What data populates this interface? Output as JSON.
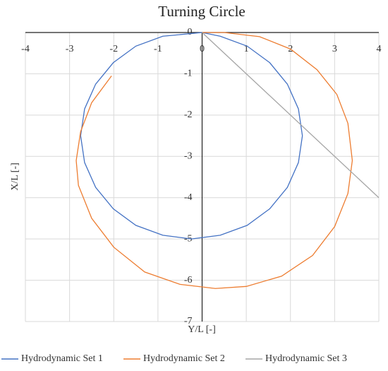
{
  "chart_data": {
    "type": "line",
    "title": "Turning Circle",
    "x_label": "Y/L [-]",
    "y_label": "X/L [-]",
    "xlim": [
      -4,
      4
    ],
    "ylim": [
      -7,
      0
    ],
    "xticks": [
      -4,
      -3,
      -2,
      -1,
      0,
      1,
      2,
      3,
      4
    ],
    "yticks": [
      0,
      -1,
      -2,
      -3,
      -4,
      -5,
      -6,
      -7
    ],
    "grid": true,
    "legend": "bottom",
    "series": [
      {
        "name": "Hydrodynamic Set 1",
        "color": "#4472c4",
        "x": [
          0,
          -0.89,
          -1.5,
          -2.01,
          -2.41,
          -2.66,
          -2.75,
          -2.66,
          -2.41,
          -2.01,
          -1.5,
          -0.89,
          -0.24,
          0.41,
          1.02,
          1.53,
          1.93,
          2.18,
          2.27,
          2.18,
          1.93,
          1.53,
          1.02,
          0.41,
          0
        ],
        "values": [
          0,
          -0.09,
          -0.33,
          -0.73,
          -1.25,
          -1.85,
          -2.5,
          -3.15,
          -3.75,
          -4.27,
          -4.67,
          -4.91,
          -5,
          -4.91,
          -4.67,
          -4.27,
          -3.75,
          -3.15,
          -2.5,
          -1.85,
          -1.25,
          -0.73,
          -0.33,
          -0.09,
          0
        ]
      },
      {
        "name": "Hydrodynamic Set 2",
        "color": "#ed7d31",
        "x": [
          0,
          0.5,
          1.3,
          2.0,
          2.6,
          3.05,
          3.3,
          3.4,
          3.3,
          3.0,
          2.5,
          1.8,
          1.0,
          0.3,
          -0.5,
          -1.3,
          -2.0,
          -2.5,
          -2.8,
          -2.85,
          -2.75,
          -2.5,
          -2.05
        ],
        "values": [
          0,
          0,
          -0.1,
          -0.4,
          -0.9,
          -1.5,
          -2.2,
          -3.1,
          -3.9,
          -4.7,
          -5.4,
          -5.9,
          -6.15,
          -6.2,
          -6.1,
          -5.8,
          -5.2,
          -4.5,
          -3.7,
          -3.1,
          -2.4,
          -1.7,
          -1.05
        ]
      },
      {
        "name": "Hydrodynamic Set 3",
        "color": "#a5a5a5",
        "x": [
          0,
          4
        ],
        "values": [
          0,
          -4
        ]
      }
    ]
  }
}
